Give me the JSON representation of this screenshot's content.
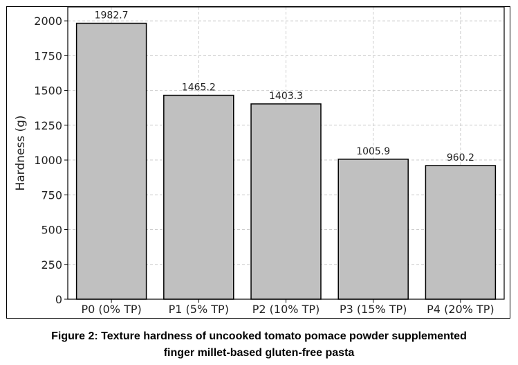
{
  "chart_data": {
    "type": "bar",
    "categories": [
      "P0 (0% TP)",
      "P1 (5% TP)",
      "P2 (10% TP)",
      "P3 (15% TP)",
      "P4 (20% TP)"
    ],
    "values": [
      1982.7,
      1465.2,
      1403.3,
      1005.9,
      960.2
    ],
    "data_labels": [
      "1982.7",
      "1465.2",
      "1403.3",
      "1005.9",
      "960.2"
    ],
    "ylabel": "Hardness (g)",
    "xlabel": "",
    "ylim": [
      0,
      2100
    ],
    "yticks": [
      0,
      250,
      500,
      750,
      1000,
      1250,
      1500,
      1750,
      2000
    ],
    "grid": true,
    "bar_color": "#c0c0c0",
    "edge_color": "#000000"
  },
  "caption": {
    "line1": "Figure 2: Texture hardness of uncooked tomato pomace powder supplemented",
    "line2": "finger millet-based gluten-free pasta"
  }
}
